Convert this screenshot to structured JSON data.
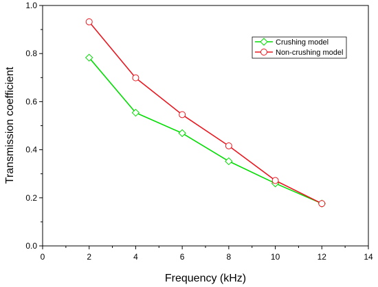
{
  "chart_data": {
    "type": "line",
    "xlabel": "Frequency (kHz)",
    "ylabel": "Transmission coefficient",
    "xlim": [
      0,
      14
    ],
    "ylim": [
      0.0,
      1.0
    ],
    "xticks": [
      0,
      2,
      4,
      6,
      8,
      10,
      12,
      14
    ],
    "xtick_labels": [
      "0",
      "2",
      "4",
      "6",
      "8",
      "10",
      "12",
      "14"
    ],
    "yticks": [
      0.0,
      0.2,
      0.4,
      0.6,
      0.8,
      1.0
    ],
    "ytick_labels": [
      "0.0",
      "0.2",
      "0.4",
      "0.6",
      "0.8",
      "1.0"
    ],
    "grid": false,
    "legend_position": "top-right",
    "series": [
      {
        "name": "Crushing model",
        "color": "#00dd00",
        "marker": "diamond",
        "x": [
          2,
          4,
          6,
          8,
          10,
          12
        ],
        "y": [
          0.783,
          0.554,
          0.469,
          0.352,
          0.26,
          0.176
        ]
      },
      {
        "name": "Non-crushing model",
        "color": "#e8161e",
        "marker": "circle",
        "x": [
          2,
          4,
          6,
          8,
          10,
          12
        ],
        "y": [
          0.932,
          0.699,
          0.546,
          0.416,
          0.272,
          0.176
        ]
      }
    ]
  }
}
